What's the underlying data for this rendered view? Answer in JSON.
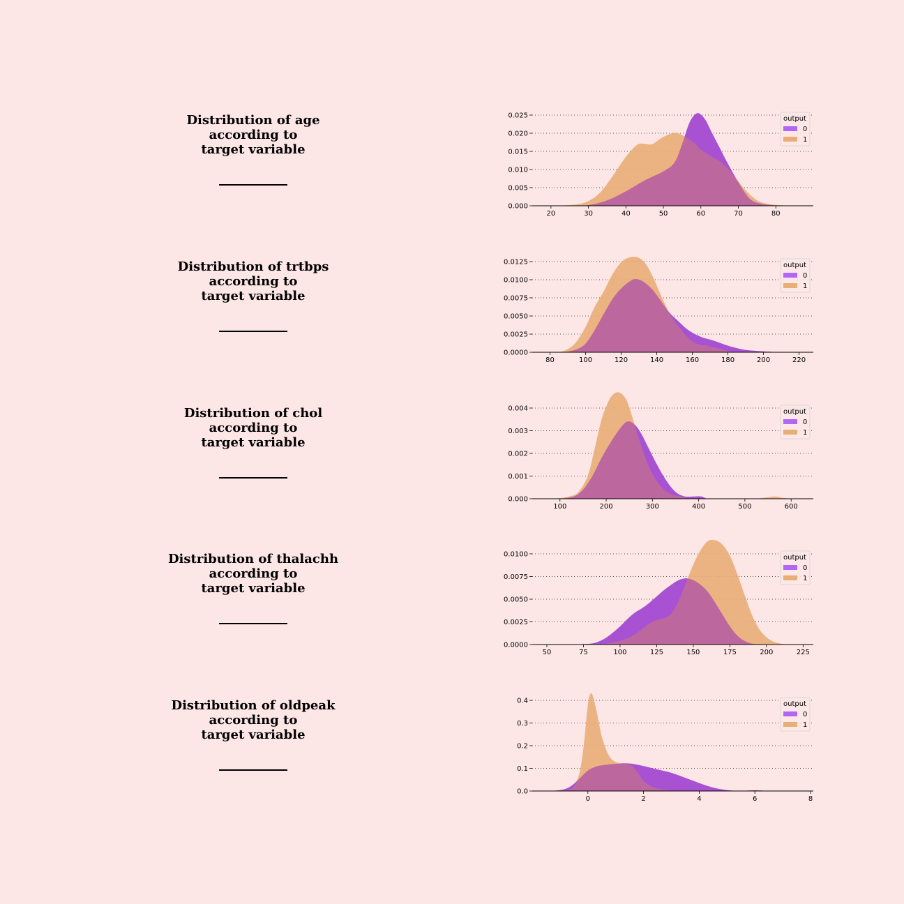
{
  "colors": {
    "background": "#fde6e6",
    "series_0": "#b167f5",
    "series_1": "#e9ad76",
    "grid": "#555555"
  },
  "legend_title": "output",
  "chart_data": [
    {
      "type": "area",
      "title_lines": [
        "Distribution of age",
        "according to",
        "target variable"
      ],
      "xlim": [
        15,
        90
      ],
      "ylim": [
        0,
        0.025
      ],
      "xticks": [
        20,
        30,
        40,
        50,
        60,
        70,
        80
      ],
      "yticks": [
        "0.000",
        "0.005",
        "0.010",
        "0.015",
        "0.020",
        "0.025"
      ],
      "legend_position": "top-right",
      "series": [
        {
          "name": "0",
          "x": [
            25,
            30,
            35,
            40,
            45,
            50,
            53,
            55,
            57,
            59,
            61,
            63,
            65,
            67,
            70,
            73,
            76,
            80,
            83
          ],
          "y": [
            0,
            0.0002,
            0.0015,
            0.004,
            0.007,
            0.0095,
            0.012,
            0.017,
            0.023,
            0.0255,
            0.024,
            0.02,
            0.016,
            0.012,
            0.0065,
            0.002,
            0.0006,
            0.0001,
            0
          ]
        },
        {
          "name": "1",
          "x": [
            22,
            27,
            30,
            33,
            36,
            40,
            43,
            45,
            47,
            50,
            53,
            55,
            58,
            60,
            63,
            66,
            69,
            72,
            75,
            78,
            82,
            84
          ],
          "y": [
            0,
            0.0004,
            0.0013,
            0.0035,
            0.0075,
            0.0135,
            0.0168,
            0.0171,
            0.017,
            0.019,
            0.0201,
            0.0195,
            0.0175,
            0.0155,
            0.0135,
            0.0115,
            0.008,
            0.0042,
            0.0015,
            0.0005,
            0.0001,
            0
          ]
        }
      ]
    },
    {
      "type": "area",
      "title_lines": [
        "Distribution of trtbps",
        "according to",
        "target variable"
      ],
      "xlim": [
        70,
        228
      ],
      "ylim": [
        0,
        0.0125
      ],
      "xticks": [
        80,
        100,
        120,
        140,
        160,
        180,
        200,
        220
      ],
      "yticks": [
        "0.0000",
        "0.0025",
        "0.0050",
        "0.0075",
        "0.0100",
        "0.0125"
      ],
      "legend_position": "top-right",
      "series": [
        {
          "name": "0",
          "x": [
            88,
            95,
            100,
            105,
            110,
            115,
            120,
            125,
            128,
            132,
            137,
            142,
            147,
            152,
            158,
            165,
            172,
            180,
            188,
            195,
            205,
            212
          ],
          "y": [
            0,
            0.0004,
            0.0012,
            0.003,
            0.0052,
            0.0073,
            0.0088,
            0.0098,
            0.0101,
            0.0098,
            0.0088,
            0.0072,
            0.0055,
            0.0043,
            0.003,
            0.0021,
            0.0016,
            0.0009,
            0.0004,
            0.0002,
            5e-05,
            0
          ]
        },
        {
          "name": "1",
          "x": [
            82,
            88,
            94,
            100,
            105,
            110,
            115,
            120,
            125,
            130,
            134,
            138,
            143,
            148,
            153,
            158,
            163,
            168,
            175,
            182,
            188
          ],
          "y": [
            0,
            0.0002,
            0.0012,
            0.0035,
            0.0062,
            0.0083,
            0.0107,
            0.0124,
            0.0131,
            0.013,
            0.0121,
            0.0103,
            0.0075,
            0.005,
            0.0033,
            0.0019,
            0.0011,
            0.0009,
            0.0005,
            0.0001,
            0
          ]
        }
      ]
    },
    {
      "type": "area",
      "title_lines": [
        "Distribution of chol",
        "according to",
        "target variable"
      ],
      "xlim": [
        40,
        648
      ],
      "ylim": [
        0,
        0.0045
      ],
      "xticks": [
        100,
        200,
        300,
        400,
        500,
        600
      ],
      "yticks": [
        "0.000",
        "0.001",
        "0.002",
        "0.003",
        "0.004"
      ],
      "legend_position": "top-right",
      "series": [
        {
          "name": "0",
          "x": [
            100,
            130,
            150,
            170,
            190,
            210,
            230,
            245,
            260,
            275,
            290,
            310,
            330,
            350,
            370,
            390,
            405,
            420,
            440
          ],
          "y": [
            0,
            0.0001,
            0.0004,
            0.001,
            0.0018,
            0.0025,
            0.0031,
            0.0034,
            0.0033,
            0.0029,
            0.0023,
            0.0015,
            0.0008,
            0.0003,
            0.0001,
            0.0001,
            0.0001,
            0,
            0
          ]
        },
        {
          "name": "1",
          "x": [
            90,
            120,
            140,
            160,
            175,
            190,
            205,
            215,
            225,
            235,
            245,
            255,
            270,
            285,
            300,
            320,
            340,
            360,
            380,
            400,
            450,
            520,
            545,
            565,
            580,
            600
          ],
          "y": [
            0,
            0.0001,
            0.0003,
            0.001,
            0.0022,
            0.0035,
            0.0043,
            0.0046,
            0.0047,
            0.0046,
            0.0043,
            0.0037,
            0.0027,
            0.0018,
            0.0011,
            0.0005,
            0.0002,
            0.0001,
            0,
            0,
            0,
            0,
            5e-05,
            0.0001,
            5e-05,
            0
          ]
        }
      ]
    },
    {
      "type": "area",
      "title_lines": [
        "Distribution of thalachh",
        "according to",
        "target variable"
      ],
      "xlim": [
        40,
        232
      ],
      "ylim": [
        0,
        0.0115
      ],
      "xticks": [
        50,
        75,
        100,
        125,
        150,
        175,
        200,
        225
      ],
      "yticks": [
        "0.0000",
        "0.0025",
        "0.0050",
        "0.0075",
        "0.0100"
      ],
      "legend_position": "top-right",
      "series": [
        {
          "name": "0",
          "x": [
            60,
            70,
            80,
            85,
            90,
            95,
            100,
            105,
            110,
            115,
            120,
            125,
            130,
            135,
            140,
            145,
            150,
            155,
            160,
            165,
            170,
            175,
            180,
            185,
            190,
            195,
            200,
            205
          ],
          "y": [
            0,
            2e-05,
            0.0001,
            0.0003,
            0.0007,
            0.0013,
            0.002,
            0.0028,
            0.0035,
            0.004,
            0.0046,
            0.0053,
            0.006,
            0.0066,
            0.0071,
            0.0073,
            0.0071,
            0.0066,
            0.0058,
            0.0046,
            0.0033,
            0.002,
            0.001,
            0.0004,
            0.0001,
            3e-05,
            1e-05,
            0
          ]
        },
        {
          "name": "1",
          "x": [
            80,
            90,
            100,
            105,
            110,
            115,
            120,
            125,
            130,
            135,
            140,
            145,
            150,
            155,
            160,
            165,
            170,
            175,
            180,
            185,
            190,
            195,
            200,
            205,
            210,
            215,
            220
          ],
          "y": [
            0,
            0.0001,
            0.0004,
            0.0007,
            0.0011,
            0.0017,
            0.0023,
            0.0027,
            0.0029,
            0.0034,
            0.0048,
            0.0068,
            0.0088,
            0.0104,
            0.0114,
            0.0115,
            0.011,
            0.0098,
            0.0078,
            0.0055,
            0.0033,
            0.0017,
            0.0008,
            0.0003,
            0.0001,
            3e-05,
            0
          ]
        }
      ]
    },
    {
      "type": "area",
      "title_lines": [
        "Distribution of oldpeak",
        "according to",
        "target variable"
      ],
      "xlim": [
        -2,
        8.1
      ],
      "ylim": [
        0,
        0.44
      ],
      "xticks": [
        0,
        2,
        4,
        6,
        8
      ],
      "yticks": [
        "0.0",
        "0.1",
        "0.2",
        "0.3",
        "0.4"
      ],
      "legend_position": "top-right",
      "series": [
        {
          "name": "0",
          "x": [
            -1.3,
            -0.9,
            -0.6,
            -0.3,
            0,
            0.3,
            0.6,
            1,
            1.3,
            1.6,
            2,
            2.5,
            3,
            3.5,
            4,
            4.5,
            5,
            5.5,
            6,
            6.4,
            6.8
          ],
          "y": [
            0,
            0.006,
            0.022,
            0.055,
            0.09,
            0.108,
            0.115,
            0.12,
            0.122,
            0.12,
            0.11,
            0.095,
            0.08,
            0.058,
            0.035,
            0.015,
            0.004,
            0.001,
            0.003,
            0.001,
            0
          ]
        },
        {
          "name": "1",
          "x": [
            -1,
            -0.7,
            -0.5,
            -0.3,
            -0.15,
            0,
            0.1,
            0.2,
            0.35,
            0.5,
            0.7,
            0.9,
            1.2,
            1.4,
            1.6,
            1.8,
            2,
            2.3,
            2.6,
            3,
            3.4,
            3.8
          ],
          "y": [
            0,
            0.005,
            0.02,
            0.08,
            0.2,
            0.38,
            0.43,
            0.41,
            0.33,
            0.24,
            0.17,
            0.135,
            0.12,
            0.118,
            0.11,
            0.08,
            0.045,
            0.02,
            0.008,
            0.002,
            0.0005,
            0
          ]
        }
      ]
    }
  ]
}
